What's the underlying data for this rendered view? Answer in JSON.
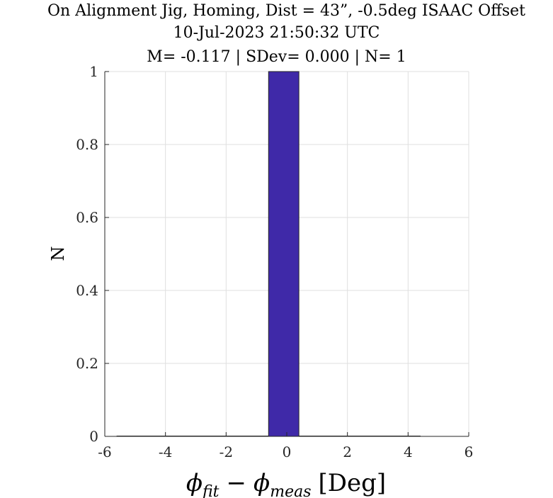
{
  "chart_data": {
    "type": "bar",
    "title": "On Alignment Jig, Homing, Dist = 43”, -0.5deg ISAAC Offset",
    "subtitle": "10-Jul-2023 21:50:32 UTC",
    "stats_line": "M= -0.117 | SDev= 0.000 | N= 1",
    "xlabel": "ϕfit − ϕmeas [Deg]",
    "xlabel_parts": {
      "phi": "ϕ",
      "fit": "fit",
      "minus": "−",
      "meas": "meas",
      "unit": "[Deg]"
    },
    "ylabel": "N",
    "xlim": [
      -6,
      6
    ],
    "ylim": [
      0,
      1
    ],
    "xticks": [
      "-6",
      "-4",
      "-2",
      "0",
      "2",
      "4",
      "6"
    ],
    "yticks": [
      "0",
      "0.2",
      "0.4",
      "0.6",
      "0.8",
      "1"
    ],
    "grid": true,
    "bin_edges": [
      -5.6,
      -4.6,
      -3.6,
      -2.6,
      -1.6,
      -0.6,
      0.4,
      1.4,
      2.4,
      3.4,
      4.4
    ],
    "counts": [
      0,
      0,
      0,
      0,
      0,
      1,
      0,
      0,
      0,
      0
    ],
    "bar_color": "#3f29a8",
    "edge_color": "#262626",
    "grid_color": "#dfdfdf"
  }
}
